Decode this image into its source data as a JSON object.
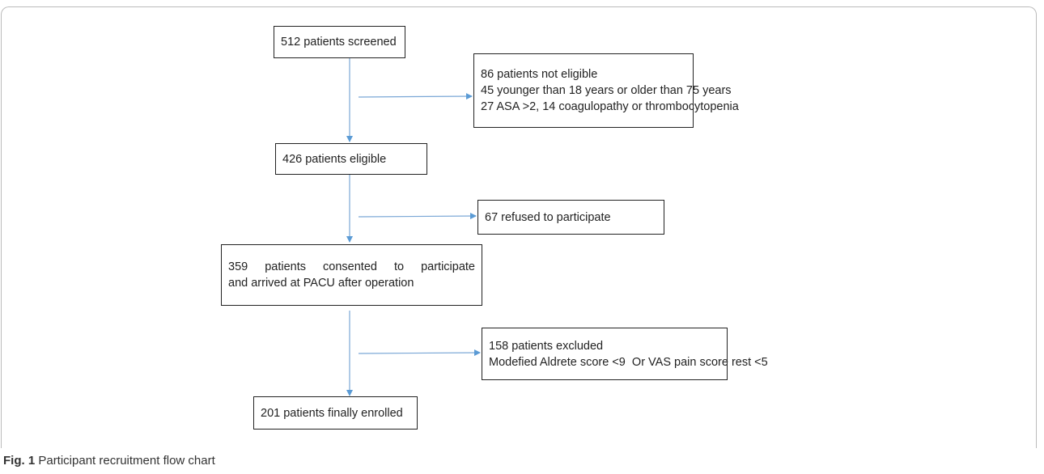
{
  "nodes": [
    {
      "lines": [
        "512 patients screened"
      ]
    },
    {
      "lines": [
        "86 patients not eligible",
        "45 younger than 18 years or older than 75 years",
        "27 ASA >2, 14 coagulopathy or thrombocytopenia"
      ]
    },
    {
      "lines": [
        "426 patients eligible"
      ]
    },
    {
      "lines": [
        "67 refused to participate"
      ]
    },
    {
      "lines": [
        "359 patients consented to participate",
        "and arrived at PACU after operation"
      ]
    },
    {
      "lines": [
        "158 patients excluded",
        "Modefied Aldrete score <9  Or VAS pain score rest <5"
      ]
    },
    {
      "lines": [
        "201 patients finally enrolled"
      ]
    }
  ],
  "caption": {
    "label": "Fig. 1",
    "text": "Participant recruitment flow chart"
  }
}
